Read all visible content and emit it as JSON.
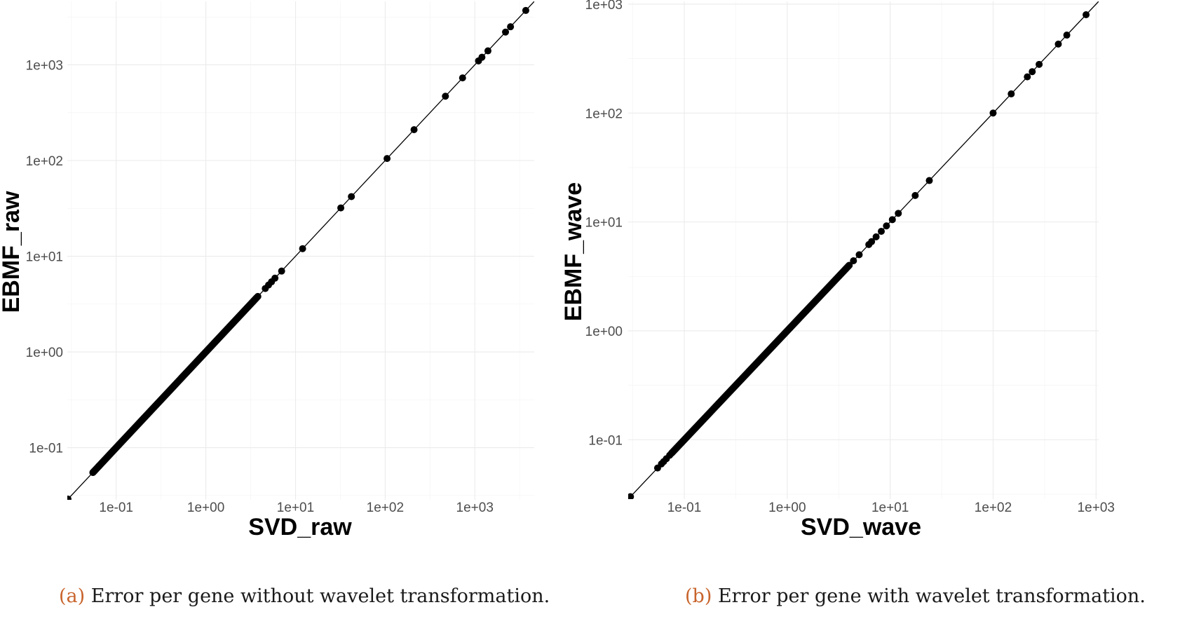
{
  "chart_data": [
    {
      "type": "scatter",
      "panel": "a",
      "title": "",
      "xlabel": "SVD_raw",
      "ylabel": "EBMF_raw",
      "log_scale": {
        "x": true,
        "y": true
      },
      "xlim": [
        0.0285,
        4600
      ],
      "ylim": [
        0.0285,
        4600
      ],
      "x_ticks": [
        0.1,
        1,
        10,
        100,
        1000
      ],
      "x_tick_labels": [
        "1e-01",
        "1e+00",
        "1e+01",
        "1e+02",
        "1e+03"
      ],
      "y_ticks": [
        0.1,
        1,
        10,
        100,
        1000
      ],
      "y_tick_labels": [
        "1e-01",
        "1e+00",
        "1e+01",
        "1e+02",
        "1e+03"
      ],
      "grid": true,
      "reference_line": "y = x",
      "dense_range": [
        0.055,
        3.7
      ],
      "points": [
        [
          0.029,
          0.029
        ],
        [
          0.055,
          0.055
        ],
        [
          0.057,
          0.057
        ],
        [
          0.059,
          0.059
        ],
        [
          0.064,
          0.064
        ],
        [
          3.8,
          3.8
        ],
        [
          4.6,
          4.6
        ],
        [
          5.0,
          5.0
        ],
        [
          5.4,
          5.4
        ],
        [
          5.9,
          5.9
        ],
        [
          7.0,
          7.0
        ],
        [
          12.0,
          12.0
        ],
        [
          32,
          32
        ],
        [
          42,
          42
        ],
        [
          105,
          105
        ],
        [
          210,
          210
        ],
        [
          470,
          470
        ],
        [
          730,
          730
        ],
        [
          1100,
          1100
        ],
        [
          1200,
          1200
        ],
        [
          1400,
          1400
        ],
        [
          2200,
          2200
        ],
        [
          2500,
          2500
        ],
        [
          3700,
          3700
        ]
      ]
    },
    {
      "type": "scatter",
      "panel": "b",
      "title": "",
      "xlabel": "SVD_wave",
      "ylabel": "EBMF_wave",
      "log_scale": {
        "x": true,
        "y": true
      },
      "xlim": [
        0.0285,
        1060
      ],
      "ylim": [
        0.0285,
        1060
      ],
      "x_ticks": [
        0.1,
        1,
        10,
        100,
        1000
      ],
      "x_tick_labels": [
        "1e-01",
        "1e+00",
        "1e+01",
        "1e+02",
        "1e+03"
      ],
      "y_ticks": [
        0.1,
        1,
        10,
        100,
        1000
      ],
      "y_tick_labels": [
        "1e-01",
        "1e+00",
        "1e+01",
        "1e+02",
        "1e+03"
      ],
      "grid": true,
      "reference_line": "y = x",
      "dense_range": [
        0.075,
        4.0
      ],
      "points": [
        [
          0.03,
          0.03
        ],
        [
          0.055,
          0.055
        ],
        [
          0.06,
          0.06
        ],
        [
          0.063,
          0.063
        ],
        [
          0.067,
          0.067
        ],
        [
          0.072,
          0.072
        ],
        [
          4.4,
          4.4
        ],
        [
          5.0,
          5.0
        ],
        [
          6.2,
          6.2
        ],
        [
          6.6,
          6.6
        ],
        [
          7.3,
          7.3
        ],
        [
          8.2,
          8.2
        ],
        [
          9.2,
          9.2
        ],
        [
          10.5,
          10.5
        ],
        [
          12.0,
          12.0
        ],
        [
          17.5,
          17.5
        ],
        [
          24,
          24
        ],
        [
          100,
          100
        ],
        [
          150,
          150
        ],
        [
          215,
          215
        ],
        [
          240,
          240
        ],
        [
          280,
          280
        ],
        [
          430,
          430
        ],
        [
          520,
          520
        ],
        [
          800,
          800
        ]
      ]
    }
  ],
  "captions": [
    {
      "tag": "(a)",
      "text": "Error per gene without wavelet transformation."
    },
    {
      "tag": "(b)",
      "text": "Error per gene with wavelet transformation."
    }
  ]
}
